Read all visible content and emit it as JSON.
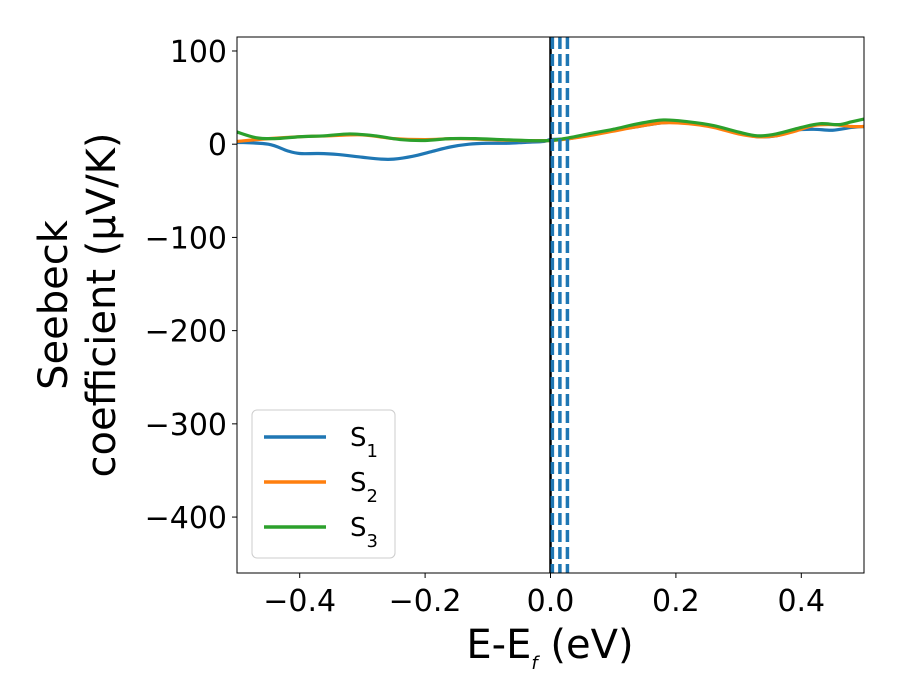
{
  "chart_data": {
    "type": "line",
    "xlabel": {
      "main": "E-E",
      "sub": "f",
      "unit": " (eV)"
    },
    "ylabel": {
      "line1": "Seebeck",
      "line2": "coefficient  (μV/K)"
    },
    "xlim": [
      -0.5,
      0.5
    ],
    "ylim": [
      -460,
      115
    ],
    "xticks": [
      -0.4,
      -0.2,
      0.0,
      0.2,
      0.4
    ],
    "xtick_labels": [
      "−0.4",
      "−0.2",
      "0.0",
      "0.2",
      "0.4"
    ],
    "yticks": [
      100,
      0,
      -100,
      -200,
      -300,
      -400
    ],
    "ytick_labels": [
      "100",
      "0",
      "−100",
      "−200",
      "−300",
      "−400"
    ],
    "grid": false,
    "legend_position": "lower-left",
    "series": [
      {
        "name": "S",
        "sub": "1",
        "color": "#1f77b4",
        "x": [
          -0.5,
          -0.45,
          -0.42,
          -0.4,
          -0.37,
          -0.34,
          -0.3,
          -0.27,
          -0.25,
          -0.22,
          -0.19,
          -0.16,
          -0.13,
          -0.1,
          -0.07,
          -0.04,
          -0.01,
          0.0,
          0.03,
          0.06,
          0.1,
          0.14,
          0.18,
          0.22,
          0.26,
          0.3,
          0.33,
          0.36,
          0.39,
          0.42,
          0.45,
          0.48,
          0.5
        ],
        "y": [
          2,
          0,
          -7,
          -10,
          -10,
          -11,
          -14,
          -16,
          -16,
          -13,
          -8,
          -3,
          0,
          1,
          1,
          2,
          3,
          5,
          6,
          10,
          15,
          19,
          23,
          23,
          19,
          12,
          8,
          9,
          15,
          16,
          15,
          18,
          19
        ]
      },
      {
        "name": "S",
        "sub": "2",
        "color": "#ff7f0e",
        "x": [
          -0.5,
          -0.45,
          -0.4,
          -0.35,
          -0.3,
          -0.25,
          -0.2,
          -0.15,
          -0.1,
          -0.05,
          0.0,
          0.03,
          0.06,
          0.1,
          0.14,
          0.18,
          0.22,
          0.26,
          0.3,
          0.33,
          0.36,
          0.39,
          0.42,
          0.45,
          0.48,
          0.5
        ],
        "y": [
          3,
          6,
          8,
          9,
          10,
          6,
          5,
          6,
          5,
          4,
          4,
          6,
          9,
          14,
          19,
          23,
          22,
          18,
          11,
          8,
          9,
          14,
          20,
          21,
          19,
          19
        ]
      },
      {
        "name": "S",
        "sub": "3",
        "color": "#2ca02c",
        "x": [
          -0.5,
          -0.47,
          -0.44,
          -0.4,
          -0.36,
          -0.32,
          -0.28,
          -0.24,
          -0.2,
          -0.16,
          -0.12,
          -0.08,
          -0.04,
          0.0,
          0.03,
          0.06,
          0.1,
          0.14,
          0.18,
          0.22,
          0.26,
          0.3,
          0.33,
          0.36,
          0.4,
          0.43,
          0.46,
          0.48,
          0.5
        ],
        "y": [
          13,
          7,
          6,
          8,
          9,
          11,
          9,
          5,
          4,
          6,
          6,
          5,
          4,
          4,
          7,
          11,
          16,
          22,
          26,
          24,
          20,
          13,
          9,
          11,
          18,
          22,
          21,
          24,
          27
        ]
      }
    ],
    "vlines": [
      {
        "x": 0.0,
        "style": "solid",
        "color": "#000000"
      },
      {
        "x": 0.003,
        "style": "dashed",
        "color": "#1f77b4"
      },
      {
        "x": 0.015,
        "style": "dashed",
        "color": "#1f77b4"
      },
      {
        "x": 0.027,
        "style": "dashed",
        "color": "#1f77b4"
      }
    ]
  }
}
